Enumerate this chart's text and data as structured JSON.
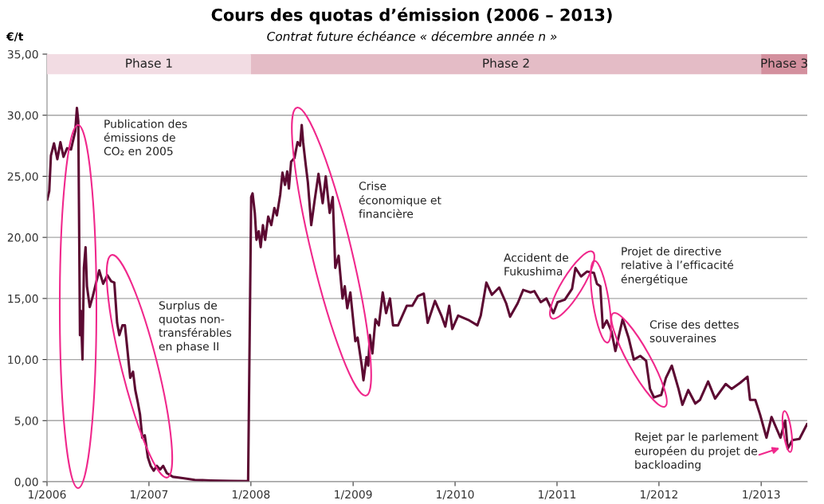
{
  "chart_data": {
    "type": "line",
    "title": "Cours des quotas d’émission (2006 – 2013)",
    "subtitle": "Contrat future échéance « décembre année n »",
    "ylabel": "€/t",
    "x": [
      "2006-01-02",
      "2006-01-09",
      "2006-01-15",
      "2006-01-26",
      "2006-02-07",
      "2006-02-18",
      "2006-03-01",
      "2006-03-14",
      "2006-03-28",
      "2006-04-12",
      "2006-04-18",
      "2006-04-23",
      "2006-04-29",
      "2006-05-02",
      "2006-05-08",
      "2006-05-13",
      "2006-05-19",
      "2006-05-24",
      "2006-06-03",
      "2006-06-14",
      "2006-06-28",
      "2006-07-07",
      "2006-07-21",
      "2006-08-05",
      "2006-08-19",
      "2006-08-30",
      "2006-09-09",
      "2006-09-17",
      "2006-09-28",
      "2006-10-07",
      "2006-10-15",
      "2006-10-26",
      "2006-11-05",
      "2006-11-13",
      "2006-11-22",
      "2006-11-30",
      "2006-12-08",
      "2006-12-17",
      "2006-12-28",
      "2007-01-07",
      "2007-01-18",
      "2007-01-29",
      "2007-02-10",
      "2007-02-21",
      "2007-03-06",
      "2007-03-28",
      "2007-05-02",
      "2007-06-14",
      "2007-08-10",
      "2007-10-21",
      "2007-12-22",
      "2008-01-02",
      "2008-01-07",
      "2008-01-15",
      "2008-01-21",
      "2008-01-29",
      "2008-02-05",
      "2008-02-13",
      "2008-02-21",
      "2008-03-03",
      "2008-03-14",
      "2008-03-25",
      "2008-04-03",
      "2008-04-15",
      "2008-04-23",
      "2008-05-02",
      "2008-05-10",
      "2008-05-16",
      "2008-05-24",
      "2008-06-05",
      "2008-06-16",
      "2008-06-25",
      "2008-07-01",
      "2008-07-06",
      "2008-07-15",
      "2008-07-23",
      "2008-08-04",
      "2008-08-16",
      "2008-08-30",
      "2008-09-14",
      "2008-09-25",
      "2008-10-09",
      "2008-10-20",
      "2008-10-29",
      "2008-11-10",
      "2008-11-24",
      "2008-12-02",
      "2008-12-11",
      "2008-12-22",
      "2009-01-09",
      "2009-01-17",
      "2009-02-01",
      "2009-02-07",
      "2009-02-18",
      "2009-02-24",
      "2009-03-02",
      "2009-03-11",
      "2009-03-22",
      "2009-04-03",
      "2009-04-17",
      "2009-04-29",
      "2009-05-13",
      "2009-05-24",
      "2009-06-11",
      "2009-07-12",
      "2009-08-01",
      "2009-08-21",
      "2009-09-11",
      "2009-09-25",
      "2009-10-21",
      "2009-11-13",
      "2009-11-27",
      "2009-12-11",
      "2009-12-22",
      "2010-01-12",
      "2010-02-21",
      "2010-03-22",
      "2010-04-03",
      "2010-04-23",
      "2010-05-13",
      "2010-06-08",
      "2010-07-03",
      "2010-07-17",
      "2010-08-13",
      "2010-09-02",
      "2010-09-28",
      "2010-10-12",
      "2010-11-04",
      "2010-11-24",
      "2010-12-19",
      "2011-01-03",
      "2011-01-29",
      "2011-02-24",
      "2011-03-08",
      "2011-03-28",
      "2011-04-18",
      "2011-05-13",
      "2011-05-24",
      "2011-06-05",
      "2011-06-14",
      "2011-06-28",
      "2011-07-15",
      "2011-07-29",
      "2011-08-24",
      "2011-09-14",
      "2011-10-03",
      "2011-10-26",
      "2011-11-16",
      "2011-11-30",
      "2011-12-14",
      "2012-01-09",
      "2012-01-26",
      "2012-02-16",
      "2012-03-11",
      "2012-03-25",
      "2012-04-15",
      "2012-05-10",
      "2012-05-27",
      "2012-06-25",
      "2012-07-20",
      "2012-08-27",
      "2012-09-17",
      "2012-10-18",
      "2012-11-13",
      "2012-11-22",
      "2012-12-11",
      "2012-12-28",
      "2013-01-20",
      "2013-02-07",
      "2013-03-11",
      "2013-03-28",
      "2013-04-06",
      "2013-04-23",
      "2013-05-18",
      "2013-06-14"
    ],
    "series": [
      {
        "color": "#5c0a32",
        "values": [
          23.1,
          23.8,
          26.7,
          27.7,
          26.4,
          27.8,
          26.6,
          27.3,
          27.2,
          28.7,
          30.6,
          29.5,
          12.0,
          14.0,
          10.0,
          17.5,
          19.2,
          16.0,
          14.3,
          15.2,
          16.5,
          17.3,
          16.2,
          16.9,
          16.4,
          16.3,
          13.0,
          12.0,
          12.8,
          12.8,
          11.0,
          8.5,
          9.0,
          7.5,
          6.5,
          5.5,
          3.6,
          3.8,
          2.0,
          1.3,
          0.9,
          1.3,
          1.0,
          1.3,
          0.7,
          0.4,
          0.3,
          0.15,
          0.1,
          0.06,
          0.05,
          23.3,
          23.6,
          22.0,
          19.8,
          20.5,
          19.2,
          21.0,
          19.8,
          21.7,
          21.0,
          22.4,
          21.8,
          23.5,
          25.3,
          24.3,
          25.4,
          24.0,
          26.2,
          26.5,
          27.8,
          27.5,
          29.2,
          27.8,
          26.0,
          24.5,
          21.0,
          23.0,
          25.2,
          22.8,
          25.0,
          22.0,
          23.3,
          17.5,
          18.5,
          15.0,
          16.0,
          14.2,
          15.5,
          11.5,
          11.8,
          9.5,
          8.3,
          10.2,
          9.5,
          12.0,
          10.5,
          13.3,
          12.8,
          15.5,
          13.8,
          15.0,
          12.8,
          12.8,
          14.4,
          14.4,
          15.2,
          15.4,
          13.0,
          14.8,
          13.6,
          12.7,
          14.4,
          12.5,
          13.6,
          13.2,
          12.8,
          13.6,
          16.3,
          15.3,
          15.9,
          14.6,
          13.5,
          14.6,
          15.7,
          15.5,
          15.6,
          14.7,
          15.0,
          13.8,
          14.7,
          14.9,
          15.8,
          17.5,
          16.8,
          17.2,
          17.1,
          16.2,
          16.0,
          12.6,
          13.2,
          12.3,
          10.7,
          13.3,
          11.8,
          10.0,
          10.3,
          9.9,
          7.6,
          6.9,
          7.1,
          8.5,
          9.5,
          7.6,
          6.3,
          7.5,
          6.4,
          6.7,
          8.2,
          6.8,
          8.0,
          7.6,
          8.1,
          8.6,
          6.7,
          6.7,
          5.5,
          3.6,
          5.3,
          3.6,
          5.0,
          2.7,
          3.4,
          3.5,
          4.7
        ]
      }
    ],
    "xlim": [
      "2006-01-01",
      "2013-06-15"
    ],
    "xticks": [
      {
        "value": "2006-01-01",
        "label": "1/2006"
      },
      {
        "value": "2007-01-01",
        "label": "1/2007"
      },
      {
        "value": "2008-01-01",
        "label": "1/2008"
      },
      {
        "value": "2009-01-01",
        "label": "1/2009"
      },
      {
        "value": "2010-01-01",
        "label": "1/2010"
      },
      {
        "value": "2011-01-01",
        "label": "1/2011"
      },
      {
        "value": "2012-01-01",
        "label": "1/2012"
      },
      {
        "value": "2013-01-01",
        "label": "1/2013"
      }
    ],
    "ylim": [
      0,
      35
    ],
    "yticks": [
      {
        "value": 0,
        "label": "0,00"
      },
      {
        "value": 5,
        "label": "5,00"
      },
      {
        "value": 10,
        "label": "10,00"
      },
      {
        "value": 15,
        "label": "15,00"
      },
      {
        "value": 20,
        "label": "20,00"
      },
      {
        "value": 25,
        "label": "25,00"
      },
      {
        "value": 30,
        "label": "30,00"
      },
      {
        "value": 35,
        "label": "35,00"
      }
    ],
    "grid": "y",
    "line_style": "solid",
    "marker": "none",
    "bands": [
      {
        "axis": "x",
        "from": "2006-01-01",
        "to": "2008-01-01",
        "label": "Phase 1",
        "color": "#f2dce3"
      },
      {
        "axis": "x",
        "from": "2008-01-01",
        "to": "2013-01-01",
        "label": "Phase 2",
        "color": "#e4bcc6"
      },
      {
        "axis": "x",
        "from": "2013-01-01",
        "to": "2013-06-15",
        "label": "Phase 3",
        "color": "#d3909e"
      }
    ],
    "annotations": [
      "Publication des\némissions de\nCO₂ en 2005",
      "Surplus de\nquotas non-\ntransférables\nen phase II",
      "Crise\néconomique et\nfinancière",
      "Accident de\nFukushima",
      "Projet de directive\nrelative à l’efficacité\nénergétique",
      "Crise des dettes\nsouveraines",
      "Rejet par le parlement\neuropéen du projet de\nbackloading"
    ]
  }
}
